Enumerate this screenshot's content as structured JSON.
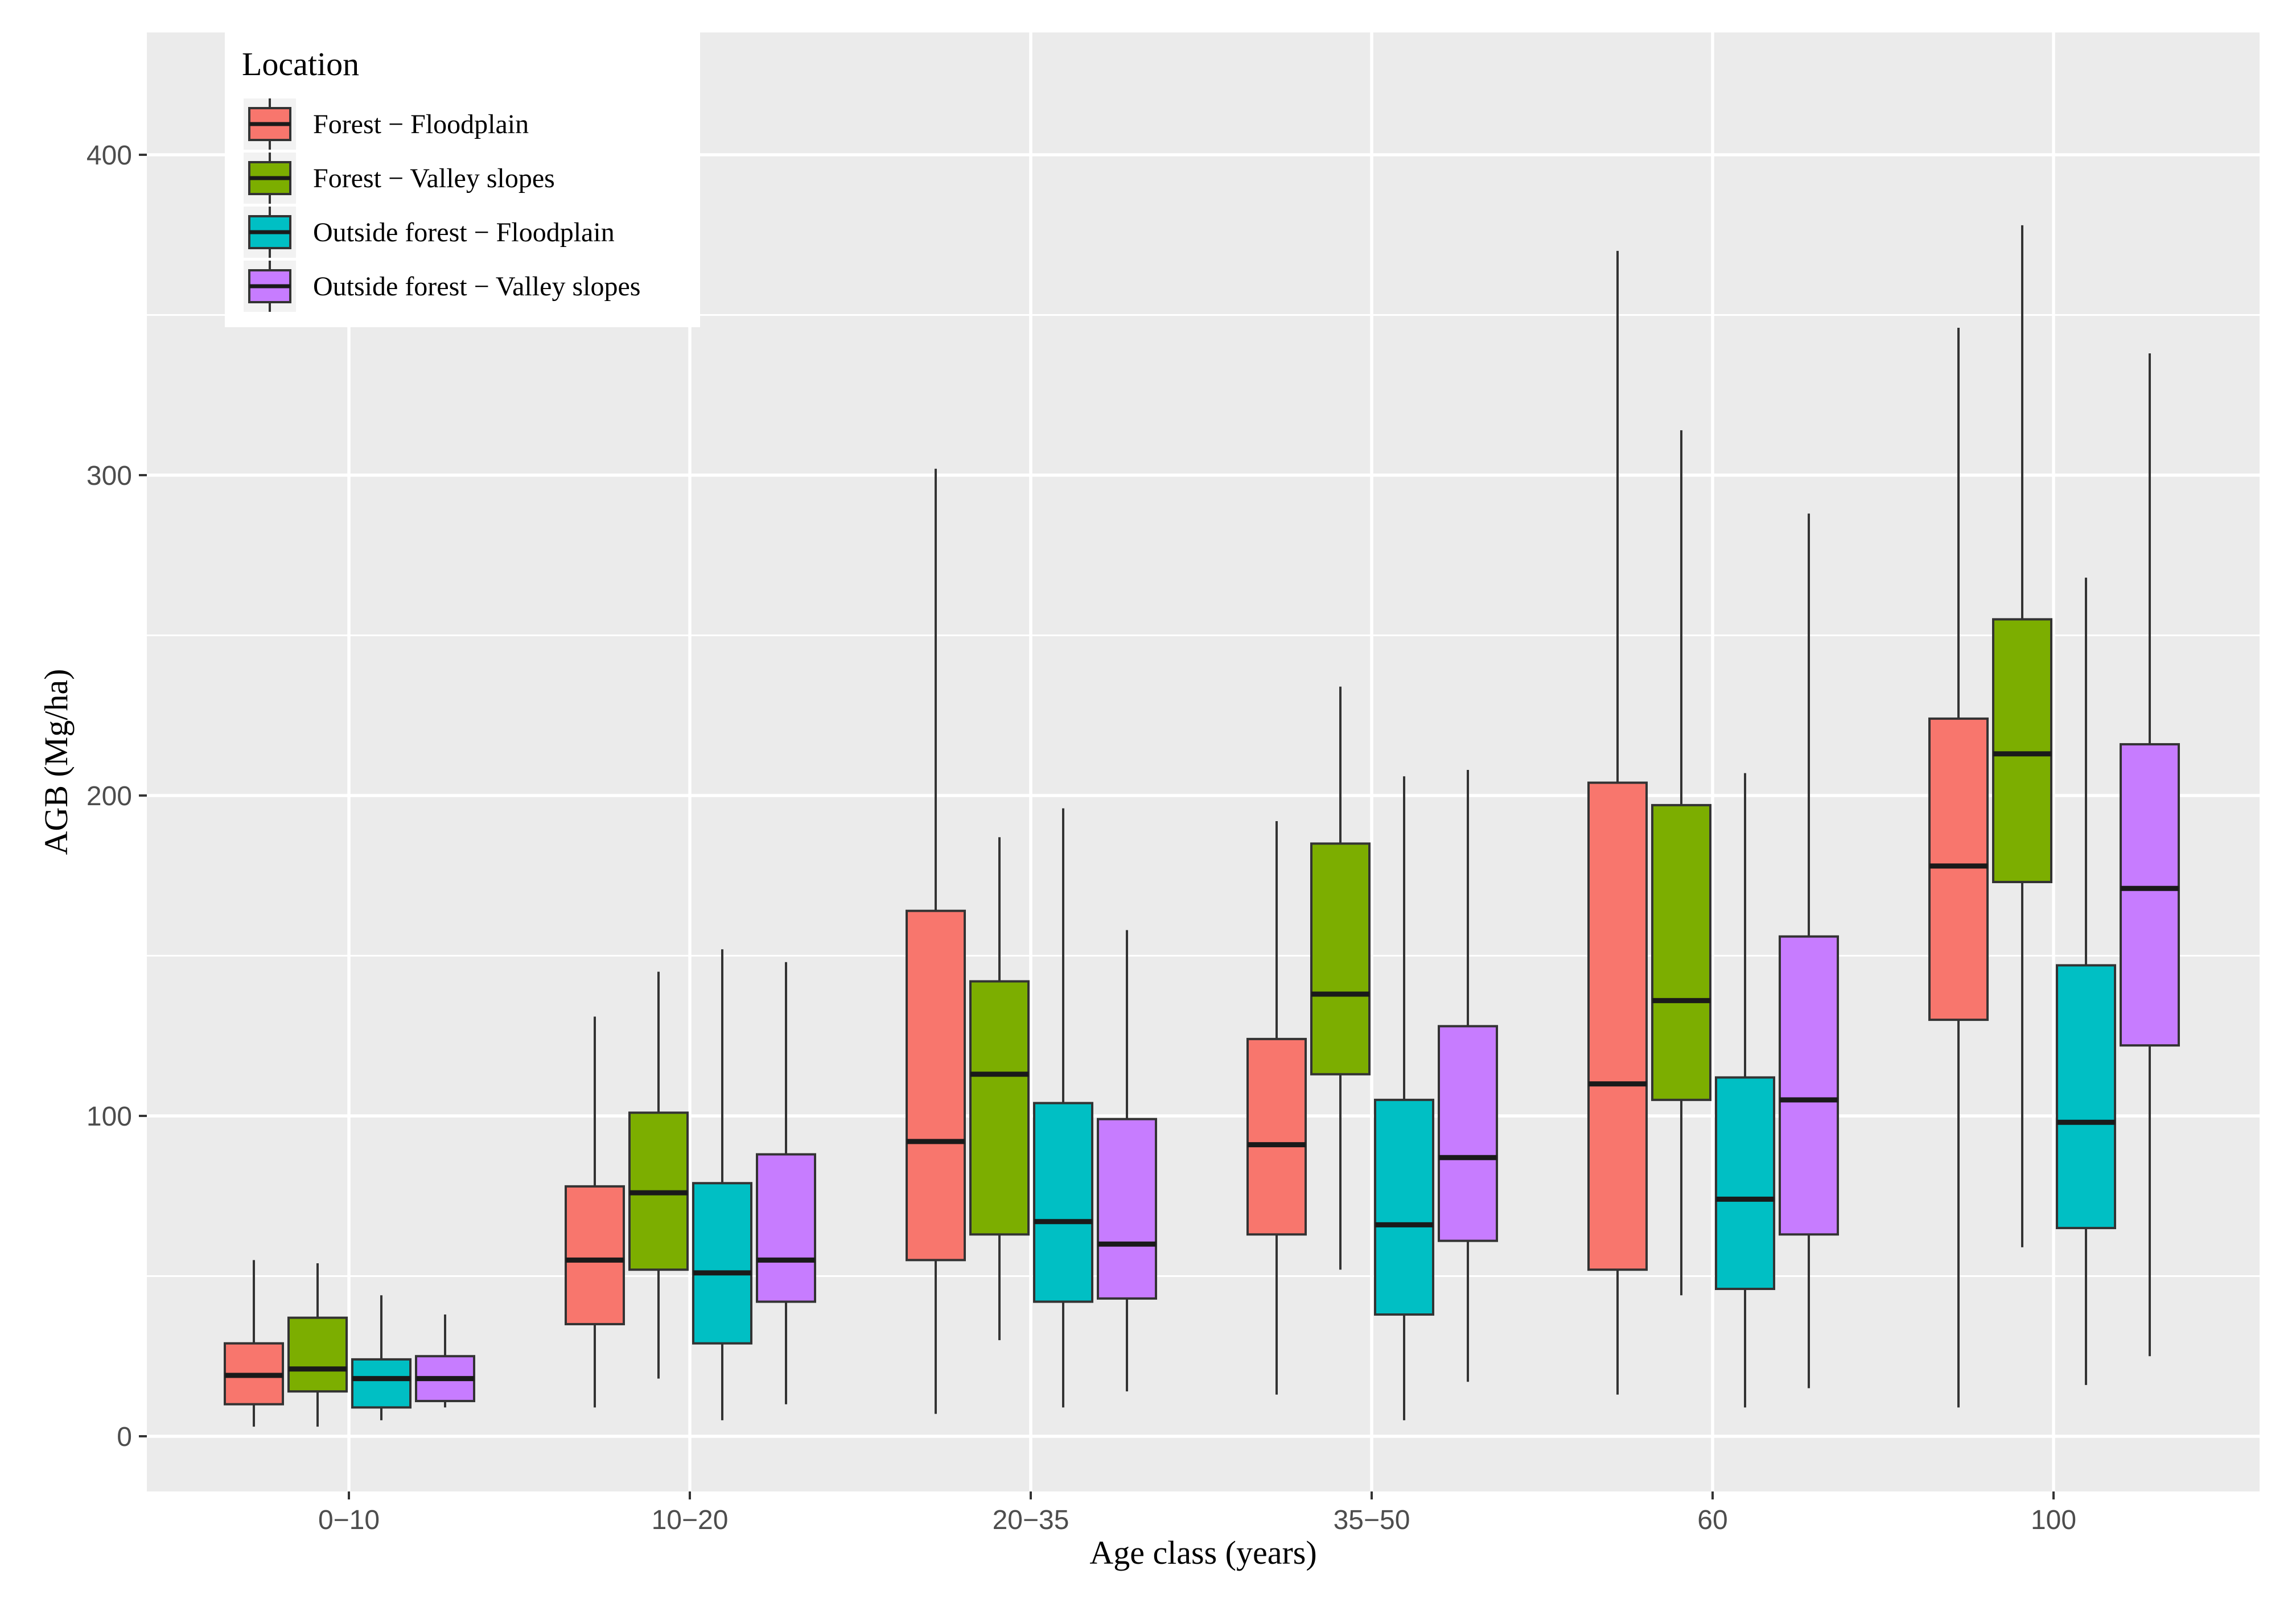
{
  "chart_data": {
    "type": "boxplot",
    "title": "",
    "xlabel": "Age class (years)",
    "ylabel": "AGB (Mg/ha)",
    "ylim": [
      -17,
      420
    ],
    "yticks": [
      0,
      100,
      200,
      300,
      400
    ],
    "grid": true,
    "legend": {
      "title": "Location",
      "position": "top-left",
      "entries": [
        {
          "name": "Forest − Floodplain",
          "color": "#F8766D"
        },
        {
          "name": "Forest − Valley slopes",
          "color": "#7CAE00"
        },
        {
          "name": "Outside forest − Floodplain",
          "color": "#00BFC4"
        },
        {
          "name": "Outside forest − Valley slopes",
          "color": "#C77CFF"
        }
      ]
    },
    "categories": [
      "0−10",
      "10−20",
      "20−35",
      "35−50",
      "60",
      "100"
    ],
    "series": [
      {
        "name": "Forest − Floodplain",
        "color": "#F8766D",
        "boxes": [
          {
            "min": 3,
            "q1": 10,
            "median": 19,
            "q3": 29,
            "max": 55
          },
          {
            "min": 9,
            "q1": 35,
            "median": 55,
            "q3": 78,
            "max": 131
          },
          {
            "min": 7,
            "q1": 55,
            "median": 92,
            "q3": 164,
            "max": 302
          },
          {
            "min": 13,
            "q1": 63,
            "median": 91,
            "q3": 124,
            "max": 192
          },
          {
            "min": 13,
            "q1": 52,
            "median": 110,
            "q3": 204,
            "max": 370
          },
          {
            "min": 9,
            "q1": 130,
            "median": 178,
            "q3": 224,
            "max": 346
          }
        ]
      },
      {
        "name": "Forest − Valley slopes",
        "color": "#7CAE00",
        "boxes": [
          {
            "min": 3,
            "q1": 14,
            "median": 21,
            "q3": 37,
            "max": 54
          },
          {
            "min": 18,
            "q1": 52,
            "median": 76,
            "q3": 101,
            "max": 145
          },
          {
            "min": 30,
            "q1": 63,
            "median": 113,
            "q3": 142,
            "max": 187
          },
          {
            "min": 52,
            "q1": 113,
            "median": 138,
            "q3": 185,
            "max": 234
          },
          {
            "min": 44,
            "q1": 105,
            "median": 136,
            "q3": 197,
            "max": 314
          },
          {
            "min": 59,
            "q1": 173,
            "median": 213,
            "q3": 255,
            "max": 378
          }
        ]
      },
      {
        "name": "Outside forest − Floodplain",
        "color": "#00BFC4",
        "boxes": [
          {
            "min": 5,
            "q1": 9,
            "median": 18,
            "q3": 24,
            "max": 44
          },
          {
            "min": 5,
            "q1": 29,
            "median": 51,
            "q3": 79,
            "max": 152
          },
          {
            "min": 9,
            "q1": 42,
            "median": 67,
            "q3": 104,
            "max": 196
          },
          {
            "min": 5,
            "q1": 38,
            "median": 66,
            "q3": 105,
            "max": 206
          },
          {
            "min": 9,
            "q1": 46,
            "median": 74,
            "q3": 112,
            "max": 207
          },
          {
            "min": 16,
            "q1": 65,
            "median": 98,
            "q3": 147,
            "max": 268
          }
        ]
      },
      {
        "name": "Outside forest − Valley slopes",
        "color": "#C77CFF",
        "boxes": [
          {
            "min": 9,
            "q1": 11,
            "median": 18,
            "q3": 25,
            "max": 38
          },
          {
            "min": 10,
            "q1": 42,
            "median": 55,
            "q3": 88,
            "max": 148
          },
          {
            "min": 14,
            "q1": 43,
            "median": 60,
            "q3": 99,
            "max": 158
          },
          {
            "min": 17,
            "q1": 61,
            "median": 87,
            "q3": 128,
            "max": 208
          },
          {
            "min": 15,
            "q1": 63,
            "median": 105,
            "q3": 156,
            "max": 288
          },
          {
            "min": 25,
            "q1": 122,
            "median": 171,
            "q3": 216,
            "max": 338
          }
        ]
      }
    ]
  }
}
